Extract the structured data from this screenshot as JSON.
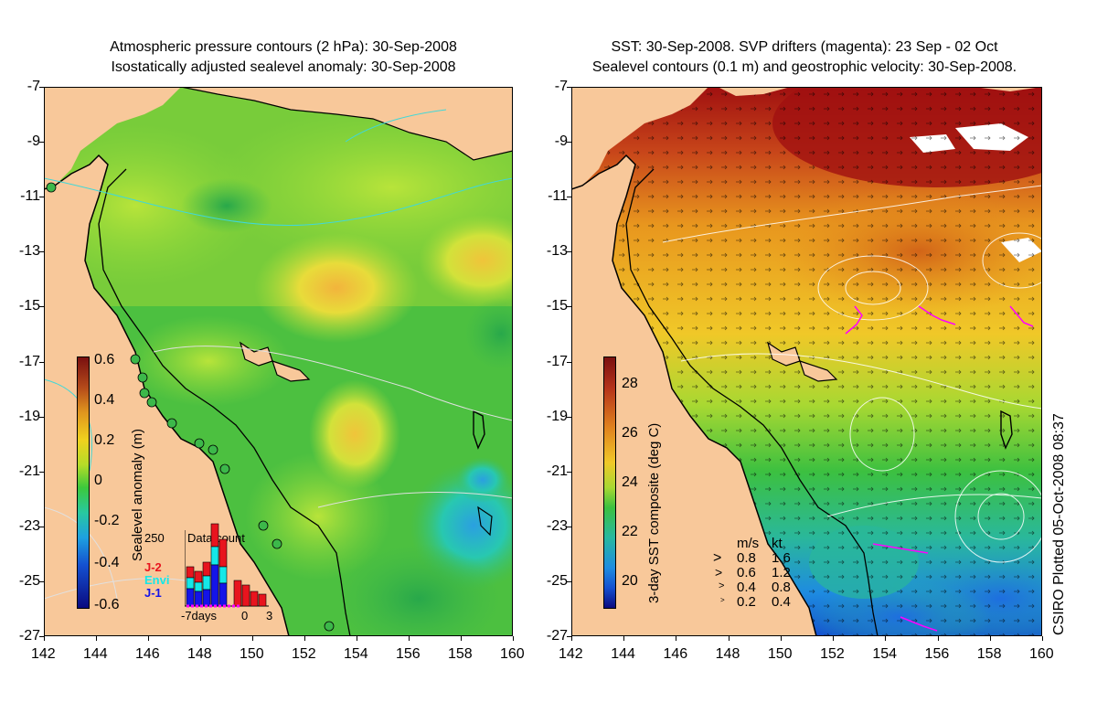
{
  "left_panel": {
    "title_line1": "Atmospheric pressure contours (2 hPa): 30-Sep-2008",
    "title_line2": "Isostatically adjusted sealevel anomaly: 30-Sep-2008",
    "colorbar_label": "Sealevel anomaly (m)",
    "colorbar_ticks": [
      "0.6",
      "0.4",
      "0.2",
      "0",
      "-0.2",
      "-0.4",
      "-0.6"
    ],
    "inset": {
      "title": "Data count",
      "max_label": "250",
      "legend": [
        {
          "name": "J-2",
          "color": "#e8141e"
        },
        {
          "name": "Envi",
          "color": "#14e8e8"
        },
        {
          "name": "J-1",
          "color": "#1414e8"
        }
      ],
      "xlabel_left": "-7days",
      "xlabel_mid": "0",
      "xlabel_right": "3"
    }
  },
  "right_panel": {
    "title_line1": "SST: 30-Sep-2008. SVP drifters (magenta): 23 Sep - 02 Oct",
    "title_line2": "Sealevel contours (0.1 m) and geostrophic velocity: 30-Sep-2008.",
    "colorbar_label": "3-day SST composite (deg C)",
    "colorbar_ticks": [
      "28",
      "26",
      "24",
      "22",
      "20"
    ],
    "velocity_key": {
      "header_ms": "m/s",
      "header_kt": "kt",
      "rows": [
        {
          "ms": "0.8",
          "kt": "1.6"
        },
        {
          "ms": "0.6",
          "kt": "1.2"
        },
        {
          "ms": "0.4",
          "kt": "0.8"
        },
        {
          "ms": "0.2",
          "kt": "0.4"
        }
      ]
    }
  },
  "axes": {
    "lat_ticks": [
      "-7",
      "-9",
      "-11",
      "-13",
      "-15",
      "-17",
      "-19",
      "-21",
      "-23",
      "-25",
      "-27"
    ],
    "lon_ticks": [
      "142",
      "144",
      "146",
      "148",
      "150",
      "152",
      "154",
      "156",
      "158",
      "160"
    ]
  },
  "credit": "CSIRO Plotted 05-Oct-2008 08:37",
  "colors": {
    "land": "#f8c89a",
    "sla_neutral": "#5cc83a",
    "coast": "#000000"
  }
}
